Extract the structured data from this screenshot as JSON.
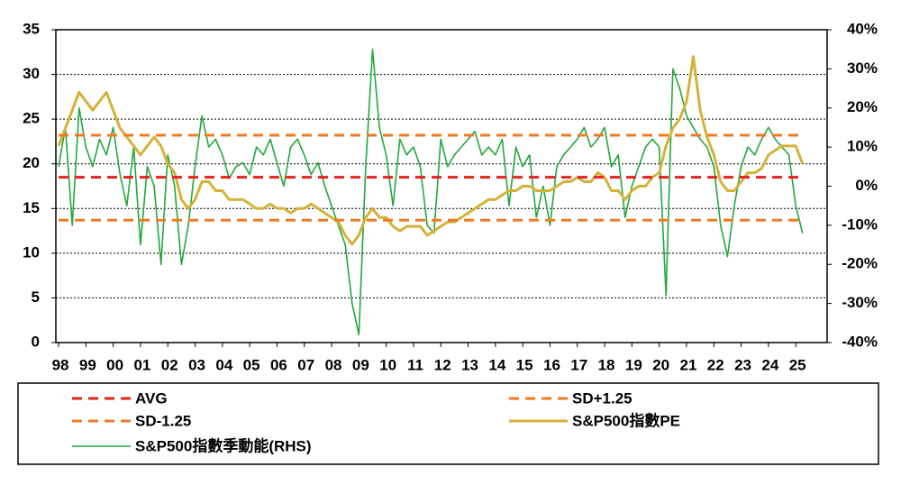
{
  "chart_data": {
    "type": "line",
    "x": [
      1998,
      1998.25,
      1998.5,
      1998.75,
      1999,
      1999.25,
      1999.5,
      1999.75,
      2000,
      2000.25,
      2000.5,
      2000.75,
      2001,
      2001.25,
      2001.5,
      2001.75,
      2002,
      2002.25,
      2002.5,
      2002.75,
      2003,
      2003.25,
      2003.5,
      2003.75,
      2004,
      2004.25,
      2004.5,
      2004.75,
      2005,
      2005.25,
      2005.5,
      2005.75,
      2006,
      2006.25,
      2006.5,
      2006.75,
      2007,
      2007.25,
      2007.5,
      2007.75,
      2008,
      2008.25,
      2008.5,
      2008.75,
      2009,
      2009.25,
      2009.5,
      2009.75,
      2010,
      2010.25,
      2010.5,
      2010.75,
      2011,
      2011.25,
      2011.5,
      2011.75,
      2012,
      2012.25,
      2012.5,
      2012.75,
      2013,
      2013.25,
      2013.5,
      2013.75,
      2014,
      2014.25,
      2014.5,
      2014.75,
      2015,
      2015.25,
      2015.5,
      2015.75,
      2016,
      2016.25,
      2016.5,
      2016.75,
      2017,
      2017.25,
      2017.5,
      2017.75,
      2018,
      2018.25,
      2018.5,
      2018.75,
      2019,
      2019.25,
      2019.5,
      2019.75,
      2020,
      2020.25,
      2020.5,
      2020.75,
      2021,
      2021.25,
      2021.5,
      2021.75,
      2022,
      2022.25,
      2022.5,
      2022.75,
      2023,
      2023.25,
      2023.5,
      2023.75,
      2024,
      2024.25,
      2024.5,
      2024.75,
      2025,
      2025.25
    ],
    "series": [
      {
        "name": "AVG",
        "color": "#e8211e",
        "dash": true,
        "x": [
          1998,
          2025.25
        ],
        "values": [
          18.5,
          18.5
        ]
      },
      {
        "name": "SD+1.25",
        "color": "#f07a22",
        "dash": true,
        "x": [
          1998,
          2025.25
        ],
        "values": [
          23.2,
          23.2
        ]
      },
      {
        "name": "SD-1.25",
        "color": "#f07a22",
        "dash": true,
        "x": [
          1998,
          2025.25
        ],
        "values": [
          13.7,
          13.7
        ]
      },
      {
        "name": "S&P500指數PE",
        "color": "#d4b23a",
        "values": [
          22,
          24,
          26,
          28,
          27,
          26,
          27,
          28,
          26,
          24,
          23,
          22,
          21,
          22,
          23,
          22,
          20,
          19,
          16,
          15,
          16,
          18,
          18,
          17,
          17,
          16,
          16,
          16,
          15.5,
          15,
          15,
          15.5,
          15,
          15,
          14.5,
          15,
          15,
          15.5,
          15,
          14.5,
          14,
          13.5,
          12,
          11,
          12,
          14,
          15,
          14,
          14,
          13,
          12.5,
          13,
          13,
          13,
          12,
          12.5,
          13,
          13.5,
          13.5,
          14,
          14.5,
          15,
          15.5,
          16,
          16,
          16.5,
          17,
          17,
          17.5,
          17.5,
          17,
          17,
          17,
          17.5,
          18,
          18,
          18.5,
          18,
          18,
          19,
          18.5,
          17,
          17,
          16,
          17,
          17.5,
          17.5,
          18.5,
          19,
          22,
          24,
          25,
          27,
          32,
          26,
          23,
          21,
          18,
          17,
          17,
          18,
          19,
          19,
          19.5,
          21,
          21.5,
          22,
          22,
          22,
          20
        ]
      },
      {
        "name": "S&P500指數季動能(RHS)",
        "color": "#22a83a",
        "axis": "y2",
        "values": [
          5,
          15,
          -10,
          20,
          10,
          5,
          12,
          8,
          15,
          3,
          -5,
          10,
          -15,
          5,
          0,
          -20,
          8,
          0,
          -20,
          -10,
          5,
          18,
          10,
          12,
          8,
          2,
          5,
          6,
          3,
          10,
          8,
          12,
          6,
          0,
          10,
          12,
          8,
          3,
          6,
          0,
          -5,
          -10,
          -15,
          -30,
          -38,
          5,
          35,
          15,
          8,
          -5,
          12,
          8,
          10,
          5,
          -10,
          -12,
          12,
          5,
          8,
          10,
          12,
          14,
          8,
          10,
          8,
          12,
          -5,
          10,
          5,
          8,
          -8,
          0,
          -10,
          5,
          8,
          10,
          12,
          15,
          10,
          12,
          15,
          5,
          8,
          -8,
          0,
          5,
          10,
          12,
          10,
          -28,
          30,
          25,
          18,
          15,
          12,
          10,
          5,
          -10,
          -18,
          -5,
          5,
          10,
          8,
          12,
          15,
          12,
          10,
          8,
          -5,
          -12
        ]
      }
    ],
    "xlim": [
      1997.9,
      2026.15
    ],
    "xticks": [
      {
        "value": 1998,
        "label": "98"
      },
      {
        "value": 1999,
        "label": "99"
      },
      {
        "value": 2000,
        "label": "00"
      },
      {
        "value": 2001,
        "label": "01"
      },
      {
        "value": 2002,
        "label": "02"
      },
      {
        "value": 2003,
        "label": "03"
      },
      {
        "value": 2004,
        "label": "04"
      },
      {
        "value": 2005,
        "label": "05"
      },
      {
        "value": 2006,
        "label": "06"
      },
      {
        "value": 2007,
        "label": "07"
      },
      {
        "value": 2008,
        "label": "08"
      },
      {
        "value": 2009,
        "label": "09"
      },
      {
        "value": 2010,
        "label": "10"
      },
      {
        "value": 2011,
        "label": "11"
      },
      {
        "value": 2012,
        "label": "12"
      },
      {
        "value": 2013,
        "label": "13"
      },
      {
        "value": 2014,
        "label": "14"
      },
      {
        "value": 2015,
        "label": "15"
      },
      {
        "value": 2016,
        "label": "16"
      },
      {
        "value": 2017,
        "label": "17"
      },
      {
        "value": 2018,
        "label": "18"
      },
      {
        "value": 2019,
        "label": "19"
      },
      {
        "value": 2020,
        "label": "20"
      },
      {
        "value": 2021,
        "label": "21"
      },
      {
        "value": 2022,
        "label": "22"
      },
      {
        "value": 2023,
        "label": "23"
      },
      {
        "value": 2024,
        "label": "24"
      },
      {
        "value": 2025,
        "label": "25"
      }
    ],
    "ylim": [
      0,
      35
    ],
    "yticks": [
      0,
      5,
      10,
      15,
      20,
      25,
      30,
      35
    ],
    "y2lim": [
      -40,
      40
    ],
    "y2ticks": [
      {
        "value": -40,
        "label": "-40%"
      },
      {
        "value": -30,
        "label": "-30%"
      },
      {
        "value": -20,
        "label": "-20%"
      },
      {
        "value": -10,
        "label": "-10%"
      },
      {
        "value": 0,
        "label": "0%"
      },
      {
        "value": 10,
        "label": "10%"
      },
      {
        "value": 20,
        "label": "20%"
      },
      {
        "value": 30,
        "label": "30%"
      },
      {
        "value": 40,
        "label": "40%"
      }
    ],
    "grid": true,
    "legend": "bottom"
  }
}
